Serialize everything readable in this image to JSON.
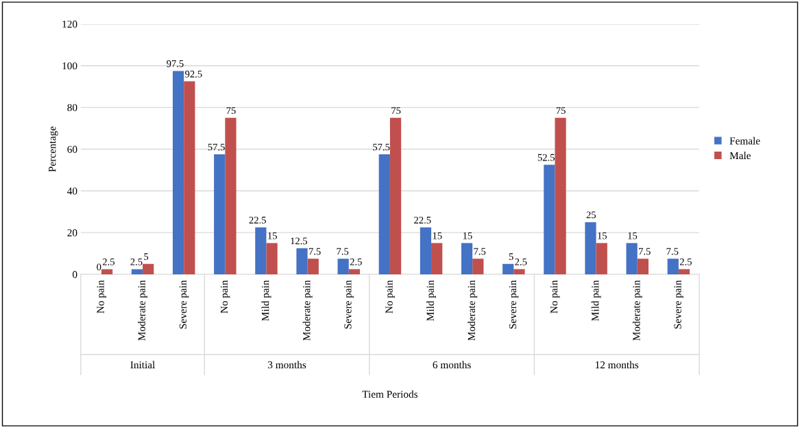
{
  "chart_data": {
    "type": "bar",
    "xlabel": "Tiem Periods",
    "ylabel": "Percentage",
    "categories": [
      "No pain",
      "Moderate pain",
      "Severe pain",
      "No pain",
      "Mild pain",
      "Moderate pain",
      "Severe pain",
      "No pain",
      "Mild pain",
      "Moderate pain",
      "Severe pain",
      "No pain",
      "Mild pain",
      "Moderate pain",
      "Severe pain"
    ],
    "series": [
      {
        "name": "Female",
        "color": "#4472c4",
        "values": [
          0,
          2.5,
          97.5,
          57.5,
          22.5,
          12.5,
          7.5,
          57.5,
          22.5,
          15,
          5,
          52.5,
          25,
          15,
          7.5
        ]
      },
      {
        "name": "Male",
        "color": "#c0504d",
        "values": [
          2.5,
          5,
          92.5,
          75,
          15,
          7.5,
          2.5,
          75,
          15,
          7.5,
          2.5,
          75,
          15,
          7.5,
          2.5
        ]
      }
    ],
    "annotations": [
      "Initial",
      "3 months",
      "6 months",
      "12 months"
    ],
    "ylim": [
      0,
      120
    ],
    "yticks": [
      0,
      20,
      40,
      60,
      80,
      100,
      120
    ],
    "grid": "y",
    "legend": "right",
    "data_labels": true
  }
}
